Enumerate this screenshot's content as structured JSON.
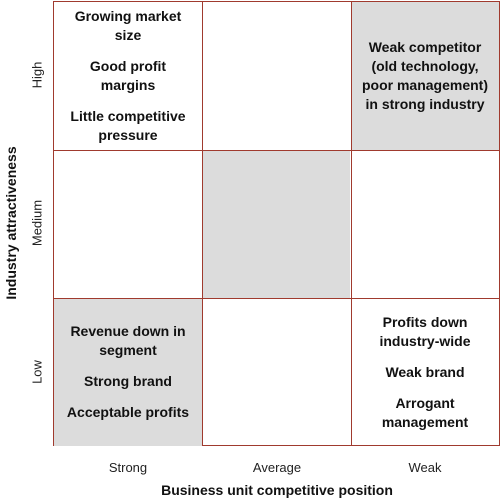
{
  "axes": {
    "y_title": "Industry attractiveness",
    "x_title": "Business unit competitive position",
    "y_levels": [
      "High",
      "Medium",
      "Low"
    ],
    "x_levels": [
      "Strong",
      "Average",
      "Weak"
    ]
  },
  "cells": {
    "high_strong": [
      "Growing market size",
      "Good profit margins",
      "Little competitive pressure"
    ],
    "high_weak": [
      "Weak competitor (old technology, poor management) in strong industry"
    ],
    "low_strong": [
      "Revenue down in segment",
      "Strong brand",
      "Acceptable profits"
    ],
    "low_weak": [
      "Profits down industry-wide",
      "Weak brand",
      "Arrogant management"
    ]
  },
  "colors": {
    "grid_line": "#a03a2e",
    "shaded_cell": "#dcdcdc"
  }
}
